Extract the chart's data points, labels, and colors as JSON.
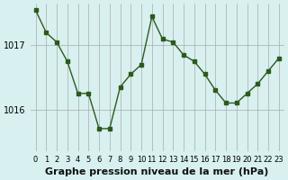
{
  "x": [
    0,
    1,
    2,
    3,
    4,
    5,
    6,
    7,
    8,
    9,
    10,
    11,
    12,
    13,
    14,
    15,
    16,
    17,
    18,
    19,
    20,
    21,
    22,
    23
  ],
  "y": [
    1017.55,
    1017.2,
    1017.05,
    1016.75,
    1016.25,
    1016.25,
    1015.7,
    1015.7,
    1016.35,
    1016.55,
    1016.7,
    1017.45,
    1017.1,
    1017.05,
    1016.85,
    1016.75,
    1016.55,
    1016.3,
    1016.1,
    1016.1,
    1016.25,
    1016.4,
    1016.6,
    1016.8
  ],
  "line_color": "#2d5a1b",
  "marker_color": "#2d5a1b",
  "bg_color": "#d8f0f0",
  "grid_color": "#aaaaaa",
  "xlabel": "Graphe pression niveau de la mer (hPa)",
  "yticks": [
    1016,
    1017
  ],
  "ylim": [
    1015.35,
    1017.65
  ],
  "xlim": [
    -0.5,
    23.5
  ],
  "title_fontsize": 9,
  "label_fontsize": 8,
  "tick_fontsize": 7
}
